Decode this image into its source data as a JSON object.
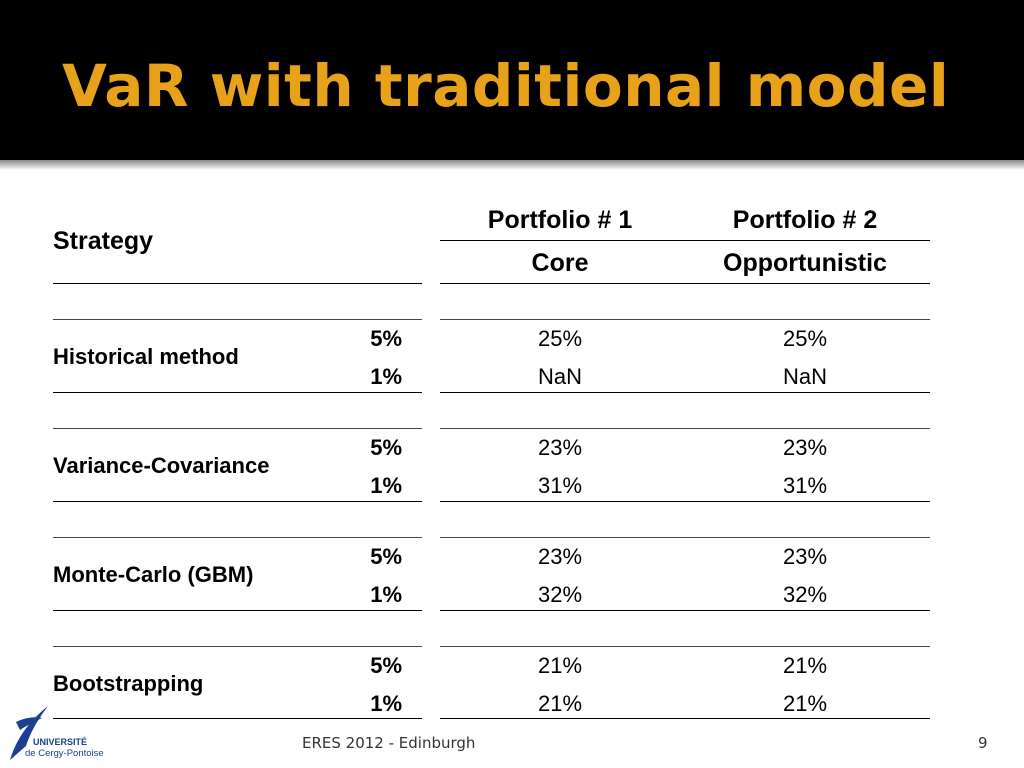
{
  "slide": {
    "title": "VaR with traditional model"
  },
  "table": {
    "strategy_header": "Strategy",
    "columns": [
      {
        "name": "Portfolio # 1",
        "type": "Core"
      },
      {
        "name": "Portfolio # 2",
        "type": "Opportunistic"
      }
    ],
    "rows": [
      {
        "label": "Historical method",
        "levels": [
          "5%",
          "1%"
        ],
        "p1": [
          "25%",
          "NaN"
        ],
        "p2": [
          "25%",
          "NaN"
        ]
      },
      {
        "label": "Variance-Covariance",
        "levels": [
          "5%",
          "1%"
        ],
        "p1": [
          "23%",
          "31%"
        ],
        "p2": [
          "23%",
          "31%"
        ]
      },
      {
        "label": "Monte-Carlo (GBM)",
        "levels": [
          "5%",
          "1%"
        ],
        "p1": [
          "23%",
          "32%"
        ],
        "p2": [
          "23%",
          "32%"
        ]
      },
      {
        "label": "Bootstrapping",
        "levels": [
          "5%",
          "1%"
        ],
        "p1": [
          "21%",
          "21%"
        ],
        "p2": [
          "21%",
          "21%"
        ]
      }
    ]
  },
  "footer": {
    "logo_line1": "UNIVERSITÉ",
    "logo_line2": "de Cergy-Pontoise",
    "event": "ERES 2012 - Edinburgh",
    "page_number": "9"
  },
  "colors": {
    "title": "#e8a21a",
    "header_bg": "#000000",
    "logo_blue": "#1d3f8f"
  }
}
